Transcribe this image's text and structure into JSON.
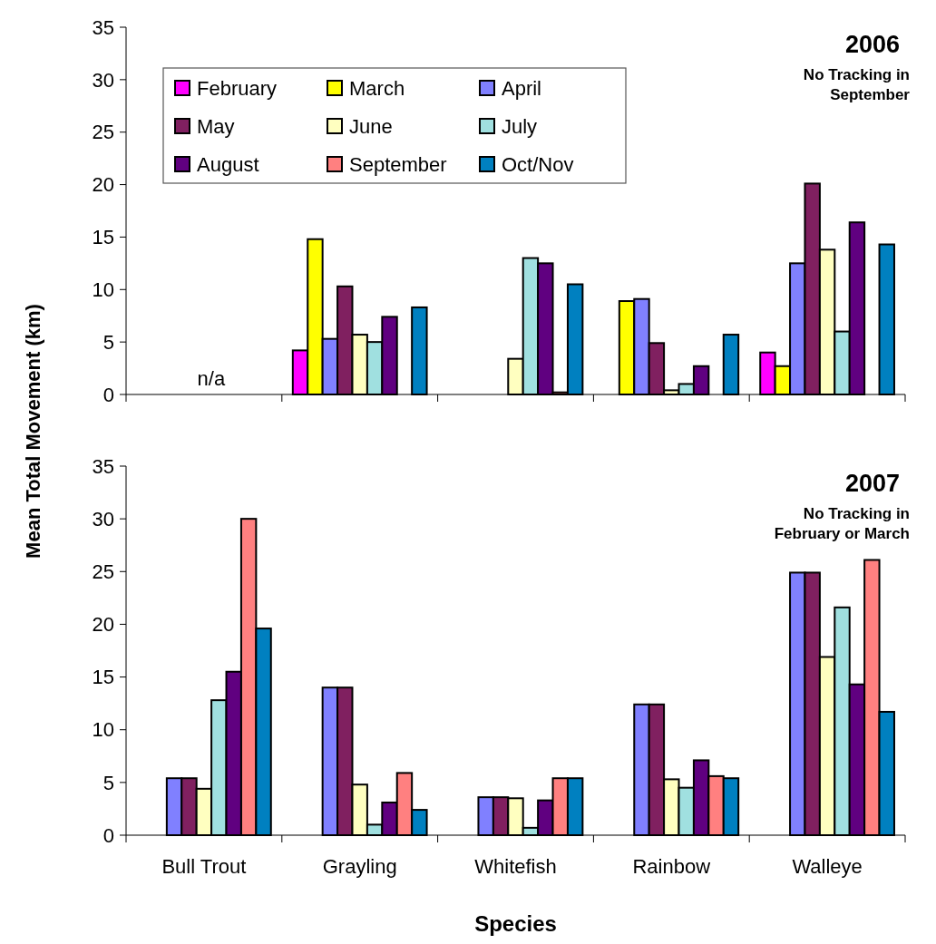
{
  "chart_data": [
    {
      "type": "bar",
      "title": "2006",
      "subtitle": "No Tracking in September",
      "ylabel": "Mean Total Movement (km)",
      "categories": [
        null,
        null,
        null,
        null,
        null
      ],
      "ylim": [
        0,
        35
      ],
      "yticks": [
        0,
        5,
        10,
        15,
        20,
        25,
        30,
        35
      ],
      "tick_labels": "y",
      "legend": "top left",
      "annotations": [
        "n/a"
      ],
      "series": [
        {
          "name": "February",
          "color": "#ff00ff",
          "values": [
            null,
            4.2,
            null,
            0,
            4.0
          ]
        },
        {
          "name": "March",
          "color": "#ffff00",
          "values": [
            null,
            14.8,
            null,
            8.9,
            2.7
          ]
        },
        {
          "name": "April",
          "color": "#8080ff",
          "values": [
            null,
            5.3,
            null,
            9.1,
            12.5
          ]
        },
        {
          "name": "May",
          "color": "#802060",
          "values": [
            null,
            10.3,
            null,
            4.9,
            20.1
          ]
        },
        {
          "name": "June",
          "color": "#ffffc0",
          "values": [
            null,
            5.7,
            3.4,
            0.4,
            13.8
          ]
        },
        {
          "name": "July",
          "color": "#a0e0e0",
          "values": [
            null,
            5.0,
            13.0,
            1.0,
            6.0
          ]
        },
        {
          "name": "August",
          "color": "#600080",
          "values": [
            null,
            7.4,
            12.5,
            2.7,
            16.4
          ]
        },
        {
          "name": "September",
          "color": "#ff8080",
          "values": [
            null,
            null,
            0.2,
            0,
            null
          ]
        },
        {
          "name": "Oct/Nov",
          "color": "#0080c0",
          "values": [
            null,
            8.3,
            10.5,
            5.7,
            14.3
          ]
        }
      ]
    },
    {
      "type": "bar",
      "title": "2007",
      "subtitle": "No Tracking in February or March",
      "xlabel": "Species",
      "categories": [
        "Bull Trout",
        "Grayling",
        "Whitefish",
        "Rainbow",
        "Walleye"
      ],
      "ylim": [
        0,
        35
      ],
      "yticks": [
        0,
        5,
        10,
        15,
        20,
        25,
        30,
        35
      ],
      "series": [
        {
          "values": [
            null,
            null,
            null,
            null,
            null
          ]
        },
        {
          "values": [
            null,
            null,
            null,
            null,
            null
          ]
        },
        {
          "color": "#8080ff",
          "values": [
            5.4,
            14.0,
            3.6,
            12.4,
            24.9
          ]
        },
        {
          "color": "#802060",
          "values": [
            5.4,
            14.0,
            3.6,
            12.4,
            24.9
          ]
        },
        {
          "color": "#ffffc0",
          "values": [
            4.4,
            4.8,
            3.5,
            5.3,
            16.9
          ]
        },
        {
          "color": "#a0e0e0",
          "values": [
            12.8,
            1.0,
            0.7,
            4.5,
            21.6
          ]
        },
        {
          "color": "#600080",
          "values": [
            15.5,
            3.1,
            3.3,
            7.1,
            14.3
          ]
        },
        {
          "color": "#ff8080",
          "values": [
            30.0,
            5.9,
            5.4,
            5.6,
            26.1
          ]
        },
        {
          "color": "#0080c0",
          "values": [
            19.6,
            2.4,
            5.4,
            5.4,
            11.7
          ]
        }
      ]
    }
  ]
}
